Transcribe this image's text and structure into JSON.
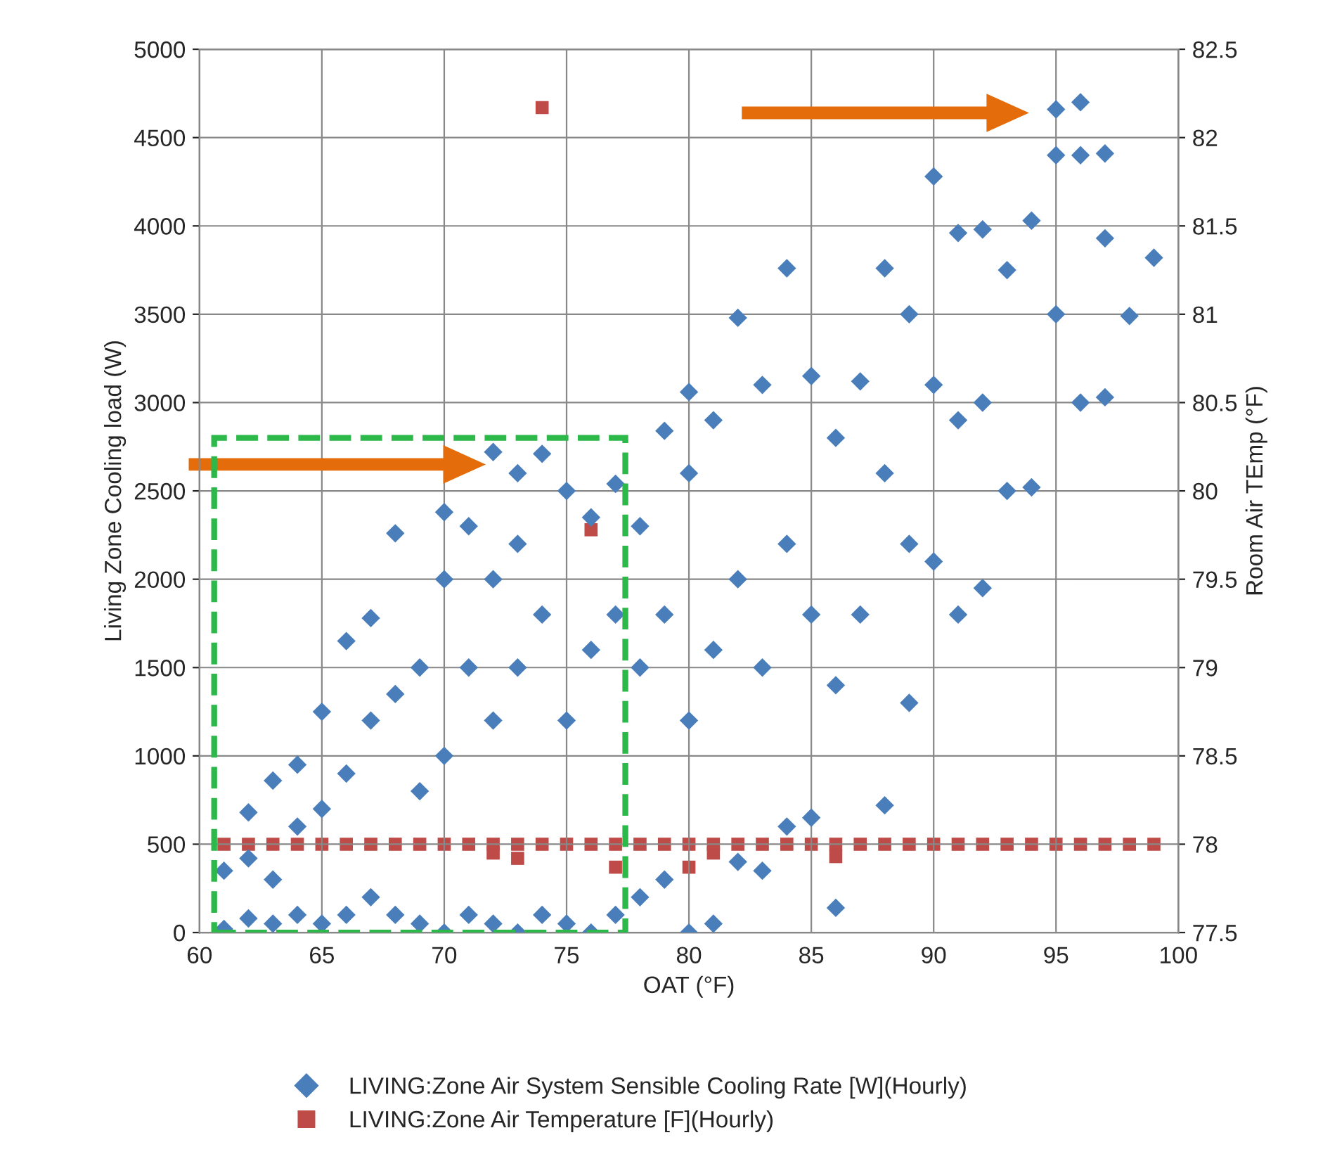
{
  "chart_data": {
    "type": "scatter",
    "xlabel": "OAT (°F)",
    "ylabel": "Living Zone Cooling load (W)",
    "y2label": "Room Air TEmp (°F)",
    "xlim": [
      60,
      100
    ],
    "xticks": [
      60,
      65,
      70,
      75,
      80,
      85,
      90,
      95,
      100
    ],
    "ylim": [
      0,
      5000
    ],
    "yticks": [
      0,
      500,
      1000,
      1500,
      2000,
      2500,
      3000,
      3500,
      4000,
      4500,
      5000
    ],
    "y2lim": [
      77.5,
      82.5
    ],
    "y2ticks": [
      77.5,
      78,
      78.5,
      79,
      79.5,
      80,
      80.5,
      81,
      81.5,
      82,
      82.5
    ],
    "grid": true,
    "legend": "bottom",
    "series": [
      {
        "name": "LIVING:Zone Air System Sensible Cooling Rate [W](Hourly)",
        "color": "#4a7ebb",
        "marker": "diamond",
        "x": [
          61,
          61,
          62,
          62,
          62,
          63,
          63,
          63,
          64,
          64,
          64,
          65,
          65,
          65,
          66,
          66,
          66,
          67,
          67,
          67,
          68,
          68,
          68,
          69,
          69,
          69,
          70,
          70,
          70,
          70,
          71,
          71,
          71,
          72,
          72,
          72,
          72,
          73,
          73,
          73,
          73,
          74,
          74,
          74,
          75,
          75,
          75,
          76,
          76,
          76,
          77,
          77,
          77,
          78,
          78,
          78,
          79,
          79,
          79,
          80,
          80,
          80,
          80,
          81,
          81,
          81,
          82,
          82,
          82,
          83,
          83,
          83,
          84,
          84,
          84,
          85,
          85,
          85,
          86,
          86,
          86,
          87,
          87,
          88,
          88,
          88,
          89,
          89,
          89,
          90,
          90,
          90,
          91,
          91,
          91,
          92,
          92,
          92,
          93,
          93,
          94,
          94,
          95,
          95,
          95,
          96,
          96,
          96,
          97,
          97,
          97,
          98,
          99
        ],
        "values": [
          20,
          350,
          80,
          420,
          680,
          50,
          300,
          860,
          100,
          600,
          950,
          50,
          700,
          1250,
          100,
          900,
          1650,
          200,
          1200,
          1780,
          100,
          1350,
          2260,
          50,
          800,
          1500,
          0,
          1000,
          2000,
          2380,
          100,
          1500,
          2300,
          50,
          1200,
          2000,
          2720,
          0,
          1500,
          2200,
          2600,
          100,
          1800,
          2710,
          50,
          1200,
          2500,
          0,
          1600,
          2350,
          100,
          1800,
          2540,
          200,
          1500,
          2300,
          300,
          1800,
          2840,
          0,
          1200,
          2600,
          3060,
          50,
          1600,
          2900,
          400,
          2000,
          3480,
          350,
          1500,
          3100,
          600,
          2200,
          3760,
          650,
          1800,
          3150,
          140,
          1400,
          2800,
          1800,
          3120,
          720,
          2600,
          3760,
          1300,
          2200,
          3500,
          2100,
          3100,
          4280,
          1800,
          2900,
          3960,
          1950,
          3000,
          3980,
          2500,
          3750,
          2520,
          4030,
          3500,
          4400,
          4660,
          3000,
          4400,
          4700,
          3030,
          3930,
          4410,
          3490,
          3820
        ]
      },
      {
        "name": "LIVING:Zone Air Temperature [F](Hourly)",
        "color": "#be4b48",
        "marker": "square",
        "axis": "y2",
        "x": [
          61,
          62,
          63,
          64,
          65,
          66,
          67,
          68,
          69,
          70,
          71,
          72,
          72,
          73,
          73,
          74,
          74,
          75,
          76,
          76,
          77,
          77,
          78,
          79,
          80,
          80,
          81,
          81,
          82,
          83,
          84,
          85,
          86,
          86,
          87,
          88,
          89,
          90,
          91,
          92,
          93,
          94,
          95,
          96,
          97,
          98,
          99
        ],
        "values": [
          78,
          78,
          78,
          78,
          78,
          78,
          78,
          78,
          78,
          78,
          78,
          78,
          77.95,
          78,
          77.92,
          78,
          82.17,
          78,
          78,
          79.78,
          78,
          77.87,
          78,
          78,
          78,
          77.87,
          78,
          77.95,
          78,
          78,
          78,
          78,
          78,
          77.93,
          78,
          78,
          78,
          78,
          78,
          78,
          78,
          78,
          78,
          78,
          78,
          78,
          78
        ]
      }
    ]
  }
}
